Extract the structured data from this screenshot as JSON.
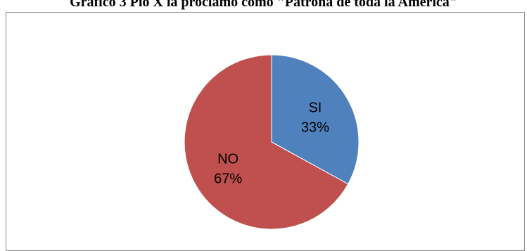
{
  "title": "Gráfico 3 Pío X la proclamó como \"Patrona de toda la América\"",
  "chart_data": {
    "type": "pie",
    "title": "Gráfico 3 Pío X la proclamó como \"Patrona de toda la América\"",
    "slices": [
      {
        "label": "SI",
        "value": 33,
        "percent_label": "33%",
        "color": "#4f81bd"
      },
      {
        "label": "NO",
        "value": 67,
        "percent_label": "67%",
        "color": "#c0504d"
      }
    ],
    "start": "12 o'clock",
    "direction": "clockwise",
    "legend": "none"
  }
}
